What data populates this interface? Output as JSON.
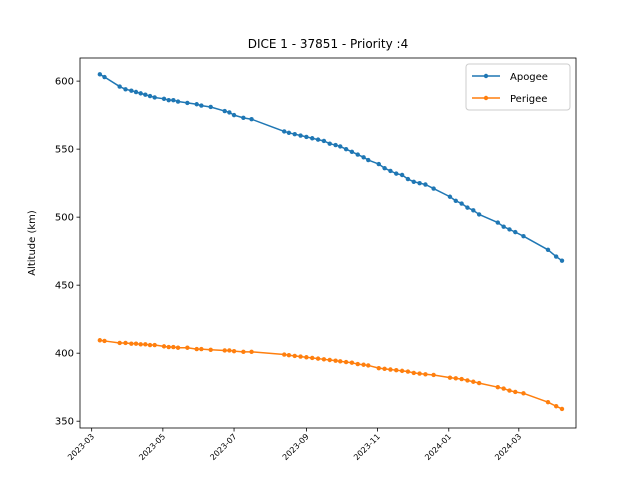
{
  "chart_data": {
    "type": "line",
    "title": "DICE 1 - 37851 - Priority :4",
    "xlabel": "",
    "ylabel": "Altitude (km)",
    "xlim": [
      "2023-02-19",
      "2024-04-19"
    ],
    "ylim": [
      345,
      617
    ],
    "yticks": [
      350,
      400,
      450,
      500,
      550,
      600
    ],
    "xticks": [
      "2023-03",
      "2023-05",
      "2023-07",
      "2023-09",
      "2023-11",
      "2024-01",
      "2024-03"
    ],
    "legend_position": "top-right",
    "colors": {
      "apogee": "#1f77b4",
      "perigee": "#ff7f0e"
    },
    "series": [
      {
        "name": "Apogee",
        "points": [
          [
            "2023-03-08",
            605
          ],
          [
            "2023-03-12",
            603
          ],
          [
            "2023-03-25",
            596
          ],
          [
            "2023-03-30",
            594
          ],
          [
            "2023-04-04",
            593
          ],
          [
            "2023-04-08",
            592
          ],
          [
            "2023-04-12",
            591
          ],
          [
            "2023-04-16",
            590
          ],
          [
            "2023-04-20",
            589
          ],
          [
            "2023-04-24",
            588
          ],
          [
            "2023-05-02",
            587
          ],
          [
            "2023-05-06",
            586
          ],
          [
            "2023-05-10",
            586
          ],
          [
            "2023-05-14",
            585
          ],
          [
            "2023-05-22",
            584
          ],
          [
            "2023-05-30",
            583
          ],
          [
            "2023-06-03",
            582
          ],
          [
            "2023-06-11",
            581
          ],
          [
            "2023-06-23",
            578
          ],
          [
            "2023-06-27",
            577
          ],
          [
            "2023-07-01",
            575
          ],
          [
            "2023-07-09",
            573
          ],
          [
            "2023-07-16",
            572
          ],
          [
            "2023-08-13",
            563
          ],
          [
            "2023-08-17",
            562
          ],
          [
            "2023-08-22",
            561
          ],
          [
            "2023-08-27",
            560
          ],
          [
            "2023-09-01",
            559
          ],
          [
            "2023-09-06",
            558
          ],
          [
            "2023-09-11",
            557
          ],
          [
            "2023-09-16",
            556
          ],
          [
            "2023-09-21",
            554
          ],
          [
            "2023-09-26",
            553
          ],
          [
            "2023-09-30",
            552
          ],
          [
            "2023-10-05",
            550
          ],
          [
            "2023-10-10",
            548
          ],
          [
            "2023-10-15",
            546
          ],
          [
            "2023-10-20",
            544
          ],
          [
            "2023-10-24",
            542
          ],
          [
            "2023-11-02",
            539
          ],
          [
            "2023-11-07",
            536
          ],
          [
            "2023-11-12",
            534
          ],
          [
            "2023-11-17",
            532
          ],
          [
            "2023-11-22",
            531
          ],
          [
            "2023-11-27",
            528
          ],
          [
            "2023-12-02",
            526
          ],
          [
            "2023-12-07",
            525
          ],
          [
            "2023-12-12",
            524
          ],
          [
            "2023-12-19",
            521
          ],
          [
            "2024-01-02",
            515
          ],
          [
            "2024-01-07",
            512
          ],
          [
            "2024-01-12",
            510
          ],
          [
            "2024-01-17",
            507
          ],
          [
            "2024-01-22",
            505
          ],
          [
            "2024-01-27",
            502
          ],
          [
            "2024-02-12",
            496
          ],
          [
            "2024-02-17",
            493
          ],
          [
            "2024-02-22",
            491
          ],
          [
            "2024-02-27",
            489
          ],
          [
            "2024-03-05",
            486
          ],
          [
            "2024-03-26",
            476
          ],
          [
            "2024-04-02",
            471
          ],
          [
            "2024-04-07",
            468
          ]
        ]
      },
      {
        "name": "Perigee",
        "points": [
          [
            "2023-03-08",
            409.5
          ],
          [
            "2023-03-12",
            409
          ],
          [
            "2023-03-25",
            407.5
          ],
          [
            "2023-03-30",
            407.5
          ],
          [
            "2023-04-04",
            407
          ],
          [
            "2023-04-08",
            407
          ],
          [
            "2023-04-12",
            406.5
          ],
          [
            "2023-04-16",
            406.5
          ],
          [
            "2023-04-20",
            406
          ],
          [
            "2023-04-24",
            406
          ],
          [
            "2023-05-02",
            405
          ],
          [
            "2023-05-06",
            404.5
          ],
          [
            "2023-05-10",
            404.5
          ],
          [
            "2023-05-14",
            404
          ],
          [
            "2023-05-22",
            404
          ],
          [
            "2023-05-30",
            403
          ],
          [
            "2023-06-03",
            403
          ],
          [
            "2023-06-11",
            402.5
          ],
          [
            "2023-06-23",
            402
          ],
          [
            "2023-06-27",
            402
          ],
          [
            "2023-07-01",
            401.5
          ],
          [
            "2023-07-09",
            401
          ],
          [
            "2023-07-16",
            401
          ],
          [
            "2023-08-13",
            399
          ],
          [
            "2023-08-17",
            398.5
          ],
          [
            "2023-08-22",
            398
          ],
          [
            "2023-08-27",
            397.5
          ],
          [
            "2023-09-01",
            397
          ],
          [
            "2023-09-06",
            396.5
          ],
          [
            "2023-09-11",
            396
          ],
          [
            "2023-09-16",
            395.5
          ],
          [
            "2023-09-21",
            395
          ],
          [
            "2023-09-26",
            394.5
          ],
          [
            "2023-09-30",
            394
          ],
          [
            "2023-10-05",
            393.5
          ],
          [
            "2023-10-10",
            393
          ],
          [
            "2023-10-15",
            392
          ],
          [
            "2023-10-20",
            391.5
          ],
          [
            "2023-10-24",
            391
          ],
          [
            "2023-11-02",
            389
          ],
          [
            "2023-11-07",
            388.5
          ],
          [
            "2023-11-12",
            388
          ],
          [
            "2023-11-17",
            387.5
          ],
          [
            "2023-11-22",
            387
          ],
          [
            "2023-11-27",
            386.5
          ],
          [
            "2023-12-02",
            385.5
          ],
          [
            "2023-12-07",
            385
          ],
          [
            "2023-12-12",
            384.5
          ],
          [
            "2023-12-19",
            384
          ],
          [
            "2024-01-02",
            382
          ],
          [
            "2024-01-07",
            381.5
          ],
          [
            "2024-01-12",
            381
          ],
          [
            "2024-01-17",
            380
          ],
          [
            "2024-01-22",
            379
          ],
          [
            "2024-01-27",
            378
          ],
          [
            "2024-02-12",
            375
          ],
          [
            "2024-02-17",
            374
          ],
          [
            "2024-02-22",
            372.5
          ],
          [
            "2024-02-27",
            371.5
          ],
          [
            "2024-03-05",
            370.5
          ],
          [
            "2024-03-26",
            364
          ],
          [
            "2024-04-02",
            361
          ],
          [
            "2024-04-07",
            359
          ]
        ]
      }
    ]
  }
}
